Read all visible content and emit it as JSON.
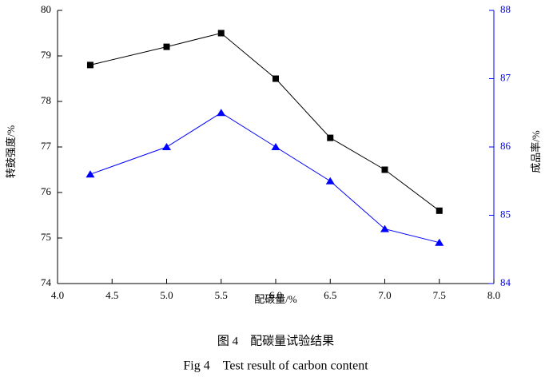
{
  "chart_data": {
    "type": "line",
    "x": [
      4.3,
      5.0,
      5.5,
      6.0,
      6.5,
      7.0,
      7.5
    ],
    "series": [
      {
        "color": "#000000",
        "marker": "square",
        "values": [
          78.8,
          79.2,
          79.5,
          78.5,
          77.2,
          76.5,
          75.6
        ]
      },
      {
        "color": "#0000ff",
        "marker": "triangle",
        "axis": "y2",
        "values": [
          85.6,
          86.0,
          86.5,
          86.0,
          85.5,
          84.8,
          84.6
        ]
      }
    ],
    "xlim": [
      4.0,
      8.0
    ],
    "xticks": [
      {
        "value": 4,
        "label": "4.0"
      },
      {
        "value": 4.5,
        "label": "4.5"
      },
      {
        "value": 5,
        "label": "5.0"
      },
      {
        "value": 5.5,
        "label": "5.5"
      },
      {
        "value": 6,
        "label": "6.0"
      },
      {
        "value": 6.5,
        "label": "6.5"
      },
      {
        "value": 7,
        "label": "7.0"
      },
      {
        "value": 7.5,
        "label": "7.5"
      },
      {
        "value": 8,
        "label": "8.0"
      }
    ],
    "ylim": [
      74,
      80
    ],
    "yticks": [
      74,
      75,
      76,
      77,
      78,
      79,
      80
    ],
    "y2lim": [
      84,
      88
    ],
    "y2ticks": [
      84,
      85,
      86,
      87,
      88
    ],
    "y2color": "#0000ff",
    "xlabel": "配碳量/%",
    "ylabel": "转鼓强度/%",
    "y2label": "成品率/%",
    "captions": [
      "图 4　配碳量试验结果",
      "Fig 4　Test result of carbon content"
    ]
  }
}
